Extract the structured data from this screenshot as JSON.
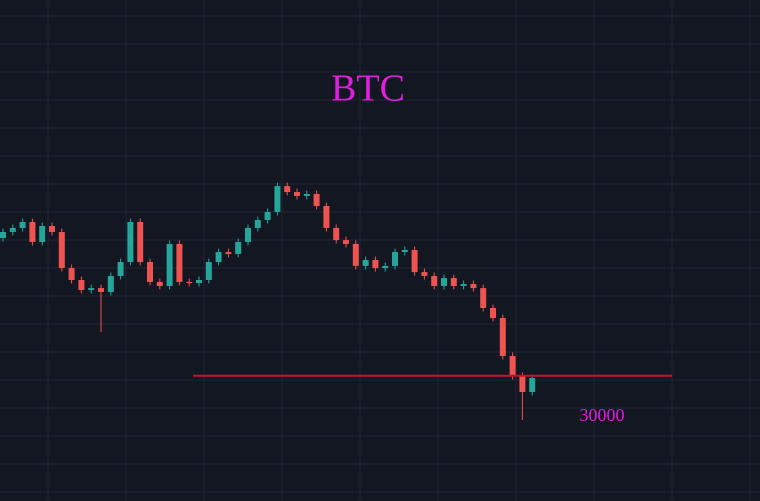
{
  "chart_data": {
    "type": "candlestick",
    "title": "BTC",
    "ylim": [
      21000,
      57000
    ],
    "up_color": "#26a69a",
    "down_color": "#ef5350",
    "level": 30000,
    "level_color": "#c8102e",
    "text_color": "#e01ee0",
    "open": [
      39900,
      40330,
      40620,
      41050,
      39610,
      40760,
      40330,
      37740,
      36880,
      36160,
      36300,
      36020,
      37170,
      38170,
      41050,
      38170,
      36740,
      36450,
      39470,
      36740,
      36660,
      36880,
      38170,
      38890,
      38750,
      39610,
      40620,
      41190,
      41770,
      43630,
      43200,
      42920,
      43060,
      42200,
      40620,
      39750,
      39470,
      37890,
      38320,
      37740,
      37890,
      38890,
      39040,
      37450,
      37170,
      36450,
      37020,
      36450,
      36590,
      36300,
      34870,
      34150,
      31420,
      29980,
      28830
    ],
    "high": [
      40580,
      40870,
      41300,
      41300,
      41010,
      41010,
      40580,
      37990,
      37130,
      36550,
      36550,
      37420,
      38420,
      41300,
      41300,
      38420,
      36990,
      39720,
      39720,
      36990,
      37130,
      38420,
      39140,
      39140,
      39860,
      40870,
      41440,
      42020,
      43880,
      43880,
      43450,
      43310,
      43310,
      42450,
      40870,
      40000,
      39720,
      38570,
      38570,
      38140,
      39140,
      39290,
      39290,
      37700,
      37420,
      37270,
      37270,
      36840,
      36840,
      36550,
      35120,
      34400,
      31670,
      30230,
      30090
    ],
    "low": [
      39650,
      40080,
      40370,
      39360,
      39360,
      40080,
      37490,
      36630,
      35910,
      35910,
      33140,
      35770,
      36920,
      37920,
      37920,
      36490,
      36200,
      36200,
      36490,
      36410,
      36410,
      36630,
      37920,
      38500,
      38500,
      39360,
      40370,
      40940,
      41520,
      42950,
      42670,
      42670,
      41950,
      40370,
      39500,
      39220,
      37640,
      37640,
      37490,
      37490,
      37640,
      38640,
      37200,
      36920,
      36200,
      36200,
      36200,
      36200,
      36050,
      34620,
      33900,
      31170,
      29730,
      26820,
      28580
    ],
    "close": [
      40330,
      40620,
      41050,
      39610,
      40760,
      40330,
      37740,
      36880,
      36160,
      36300,
      36020,
      37170,
      38170,
      41050,
      38170,
      36740,
      36450,
      39470,
      36740,
      36660,
      36880,
      38170,
      38890,
      38750,
      39610,
      40620,
      41190,
      41770,
      43630,
      43200,
      42920,
      43060,
      42200,
      40620,
      39750,
      39470,
      37890,
      38320,
      37740,
      37890,
      38890,
      39040,
      37450,
      37170,
      36450,
      37020,
      36450,
      36590,
      36300,
      34870,
      34150,
      31420,
      29980,
      28830,
      29840
    ]
  }
}
